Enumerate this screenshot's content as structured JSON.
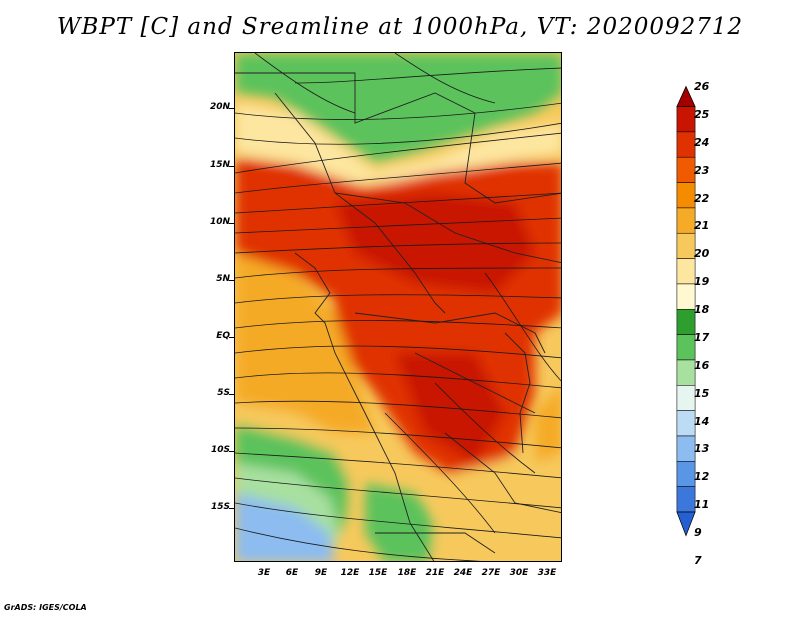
{
  "title": "WBPT [C] and Sreamline at 1000hPa, VT: 2020092712",
  "footer": "GrADS: IGES/COLA",
  "map": {
    "lat_labels": [
      "20N",
      "15N",
      "10N",
      "5N",
      "EQ",
      "5S",
      "10S",
      "15S"
    ],
    "lon_labels": [
      "3E",
      "6E",
      "9E",
      "12E",
      "15E",
      "18E",
      "21E",
      "24E",
      "27E",
      "30E",
      "33E"
    ],
    "lat_range": [
      -20,
      25
    ],
    "lon_range": [
      0,
      34
    ]
  },
  "colorbar": {
    "labels": [
      "26",
      "25",
      "24",
      "23",
      "22",
      "21",
      "20",
      "19",
      "18",
      "17",
      "16",
      "15",
      "14",
      "13",
      "12",
      "11",
      "9",
      "7"
    ],
    "colors": [
      "#a50000",
      "#c81400",
      "#e03200",
      "#f05a00",
      "#f58c00",
      "#f5aa28",
      "#f7c95c",
      "#fde6a0",
      "#fff8d0",
      "#2e9e2e",
      "#5cc25c",
      "#a8e0a0",
      "#e6f5f0",
      "#bcdcf5",
      "#8cbcf0",
      "#5a96e6",
      "#3c78dc",
      "#2560d2"
    ]
  }
}
